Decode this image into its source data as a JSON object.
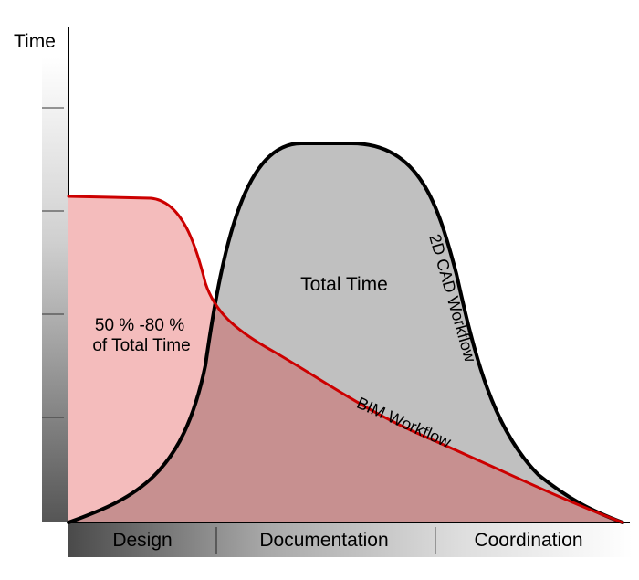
{
  "y_axis": {
    "label": "Time"
  },
  "phases": [
    {
      "label": "Design"
    },
    {
      "label": "Documentation"
    },
    {
      "label": "Coordination"
    }
  ],
  "curves": {
    "cad": {
      "label": "2D CAD Workflow",
      "area_label": "Total Time",
      "fill": "#c0c0c0",
      "stroke": "#000000"
    },
    "bim": {
      "label": "BIM Workflow",
      "area_label_line1": "50 % -80 %",
      "area_label_line2": "of Total Time",
      "fill": "#f4bcbc",
      "overlap_fill": "#c79090",
      "stroke": "#cc0000"
    }
  }
}
